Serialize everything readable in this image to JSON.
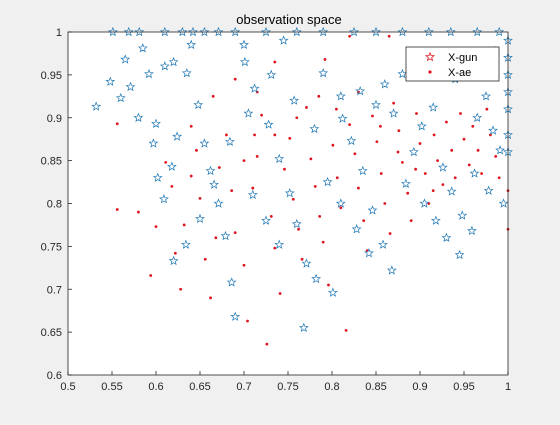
{
  "chart_data": {
    "type": "scatter",
    "title": "observation space",
    "xlabel": "",
    "ylabel": "",
    "xlim": [
      0.5,
      1
    ],
    "ylim": [
      0.6,
      1
    ],
    "xticks": [
      "0.5",
      "0.55",
      "0.6",
      "0.65",
      "0.7",
      "0.75",
      "0.8",
      "0.85",
      "0.9",
      "0.95",
      "1"
    ],
    "yticks": [
      "0.6",
      "0.65",
      "0.7",
      "0.75",
      "0.8",
      "0.85",
      "0.9",
      "0.95",
      "1"
    ],
    "grid": false,
    "legend_position": "top-right",
    "series": [
      {
        "name": "X-gun",
        "marker": "star",
        "color": "#1f77b4",
        "points": [
          [
            0.551,
            1.0
          ],
          [
            0.569,
            1.0
          ],
          [
            0.581,
            1.0
          ],
          [
            0.61,
            1.0
          ],
          [
            0.63,
            1.0
          ],
          [
            0.642,
            1.0
          ],
          [
            0.655,
            1.0
          ],
          [
            0.671,
            1.0
          ],
          [
            0.69,
            1.0
          ],
          [
            0.725,
            1.0
          ],
          [
            0.76,
            1.0
          ],
          [
            0.79,
            1.0
          ],
          [
            0.825,
            1.0
          ],
          [
            0.85,
            1.0
          ],
          [
            0.88,
            1.0
          ],
          [
            0.91,
            1.0
          ],
          [
            0.935,
            1.0
          ],
          [
            0.965,
            1.0
          ],
          [
            0.99,
            1.0
          ],
          [
            1.0,
            0.99
          ],
          [
            1.0,
            0.97
          ],
          [
            1.0,
            0.95
          ],
          [
            1.0,
            0.93
          ],
          [
            1.0,
            0.91
          ],
          [
            1.0,
            0.88
          ],
          [
            1.0,
            0.86
          ],
          [
            0.532,
            0.913
          ],
          [
            0.548,
            0.942
          ],
          [
            0.565,
            0.968
          ],
          [
            0.571,
            0.936
          ],
          [
            0.585,
            0.981
          ],
          [
            0.592,
            0.951
          ],
          [
            0.6,
            0.893
          ],
          [
            0.602,
            0.83
          ],
          [
            0.609,
            0.805
          ],
          [
            0.618,
            0.843
          ],
          [
            0.624,
            0.878
          ],
          [
            0.635,
            0.952
          ],
          [
            0.648,
            0.915
          ],
          [
            0.655,
            0.87
          ],
          [
            0.662,
            0.838
          ],
          [
            0.671,
            0.8
          ],
          [
            0.679,
            0.762
          ],
          [
            0.686,
            0.708
          ],
          [
            0.69,
            0.668
          ],
          [
            0.701,
            0.965
          ],
          [
            0.712,
            0.934
          ],
          [
            0.728,
            0.892
          ],
          [
            0.74,
            0.852
          ],
          [
            0.752,
            0.812
          ],
          [
            0.76,
            0.776
          ],
          [
            0.771,
            0.73
          ],
          [
            0.782,
            0.712
          ],
          [
            0.768,
            0.655
          ],
          [
            0.801,
            0.696
          ],
          [
            0.79,
            0.952
          ],
          [
            0.81,
            0.925
          ],
          [
            0.822,
            0.873
          ],
          [
            0.835,
            0.838
          ],
          [
            0.846,
            0.792
          ],
          [
            0.858,
            0.752
          ],
          [
            0.868,
            0.722
          ],
          [
            0.884,
            0.823
          ],
          [
            0.893,
            0.86
          ],
          [
            0.902,
            0.89
          ],
          [
            0.915,
            0.912
          ],
          [
            0.926,
            0.842
          ],
          [
            0.936,
            0.814
          ],
          [
            0.948,
            0.786
          ],
          [
            0.959,
            0.768
          ],
          [
            0.965,
            0.9
          ],
          [
            0.975,
            0.925
          ],
          [
            0.983,
            0.885
          ],
          [
            0.991,
            0.862
          ],
          [
            0.88,
            0.951
          ],
          [
            0.86,
            0.939
          ],
          [
            0.9,
            0.972
          ],
          [
            0.92,
            0.961
          ],
          [
            0.94,
            0.945
          ],
          [
            0.955,
            0.955
          ],
          [
            0.97,
            0.965
          ],
          [
            0.985,
            0.978
          ],
          [
            0.87,
            0.905
          ],
          [
            0.85,
            0.915
          ],
          [
            0.832,
            0.931
          ],
          [
            0.812,
            0.899
          ],
          [
            0.78,
            0.887
          ],
          [
            0.757,
            0.92
          ],
          [
            0.731,
            0.95
          ],
          [
            0.705,
            0.905
          ],
          [
            0.684,
            0.872
          ],
          [
            0.666,
            0.822
          ],
          [
            0.65,
            0.782
          ],
          [
            0.634,
            0.752
          ],
          [
            0.62,
            0.733
          ],
          [
            0.597,
            0.87
          ],
          [
            0.58,
            0.9
          ],
          [
            0.56,
            0.923
          ],
          [
            0.74,
            0.752
          ],
          [
            0.725,
            0.78
          ],
          [
            0.71,
            0.81
          ],
          [
            0.795,
            0.825
          ],
          [
            0.81,
            0.8
          ],
          [
            0.828,
            0.77
          ],
          [
            0.842,
            0.742
          ],
          [
            0.905,
            0.8
          ],
          [
            0.918,
            0.78
          ],
          [
            0.93,
            0.76
          ],
          [
            0.945,
            0.74
          ],
          [
            0.962,
            0.835
          ],
          [
            0.978,
            0.815
          ],
          [
            0.995,
            0.8
          ],
          [
            0.7,
            0.985
          ],
          [
            0.745,
            0.99
          ],
          [
            0.64,
            0.985
          ],
          [
            0.61,
            0.96
          ],
          [
            0.62,
            0.965
          ]
        ]
      },
      {
        "name": "X-ae",
        "marker": "dot",
        "color": "#e0141e",
        "points": [
          [
            0.556,
            0.893
          ],
          [
            0.556,
            0.793
          ],
          [
            0.58,
            0.79
          ],
          [
            0.594,
            0.716
          ],
          [
            0.6,
            0.773
          ],
          [
            0.611,
            0.848
          ],
          [
            0.618,
            0.82
          ],
          [
            0.622,
            0.742
          ],
          [
            0.628,
            0.7
          ],
          [
            0.632,
            0.775
          ],
          [
            0.64,
            0.832
          ],
          [
            0.646,
            0.862
          ],
          [
            0.65,
            0.806
          ],
          [
            0.656,
            0.735
          ],
          [
            0.662,
            0.69
          ],
          [
            0.668,
            0.76
          ],
          [
            0.672,
            0.842
          ],
          [
            0.68,
            0.88
          ],
          [
            0.686,
            0.815
          ],
          [
            0.69,
            0.766
          ],
          [
            0.7,
            0.728
          ],
          [
            0.704,
            0.663
          ],
          [
            0.71,
            0.818
          ],
          [
            0.715,
            0.855
          ],
          [
            0.72,
            0.903
          ],
          [
            0.726,
            0.636
          ],
          [
            0.731,
            0.785
          ],
          [
            0.735,
            0.748
          ],
          [
            0.741,
            0.695
          ],
          [
            0.746,
            0.84
          ],
          [
            0.752,
            0.876
          ],
          [
            0.756,
            0.805
          ],
          [
            0.762,
            0.77
          ],
          [
            0.766,
            0.735
          ],
          [
            0.771,
            0.912
          ],
          [
            0.776,
            0.852
          ],
          [
            0.781,
            0.82
          ],
          [
            0.786,
            0.785
          ],
          [
            0.79,
            0.755
          ],
          [
            0.796,
            0.705
          ],
          [
            0.801,
            0.868
          ],
          [
            0.806,
            0.83
          ],
          [
            0.81,
            0.795
          ],
          [
            0.816,
            0.652
          ],
          [
            0.82,
            0.892
          ],
          [
            0.826,
            0.858
          ],
          [
            0.83,
            0.818
          ],
          [
            0.836,
            0.78
          ],
          [
            0.84,
            0.745
          ],
          [
            0.846,
            0.902
          ],
          [
            0.851,
            0.872
          ],
          [
            0.856,
            0.835
          ],
          [
            0.86,
            0.8
          ],
          [
            0.866,
            0.765
          ],
          [
            0.87,
            0.917
          ],
          [
            0.876,
            0.885
          ],
          [
            0.88,
            0.848
          ],
          [
            0.886,
            0.812
          ],
          [
            0.89,
            0.78
          ],
          [
            0.896,
            0.905
          ],
          [
            0.9,
            0.87
          ],
          [
            0.906,
            0.835
          ],
          [
            0.91,
            0.8
          ],
          [
            0.916,
            0.88
          ],
          [
            0.92,
            0.85
          ],
          [
            0.926,
            0.822
          ],
          [
            0.93,
            0.895
          ],
          [
            0.936,
            0.862
          ],
          [
            0.94,
            0.83
          ],
          [
            0.946,
            0.905
          ],
          [
            0.95,
            0.875
          ],
          [
            0.956,
            0.845
          ],
          [
            0.96,
            0.89
          ],
          [
            0.966,
            0.862
          ],
          [
            0.97,
            0.835
          ],
          [
            0.976,
            0.91
          ],
          [
            0.98,
            0.88
          ],
          [
            0.986,
            0.855
          ],
          [
            0.99,
            0.83
          ],
          [
            1.0,
            0.815
          ],
          [
            1.0,
            0.77
          ],
          [
            0.64,
            0.89
          ],
          [
            0.665,
            0.925
          ],
          [
            0.69,
            0.945
          ],
          [
            0.715,
            0.93
          ],
          [
            0.735,
            0.88
          ],
          [
            0.76,
            0.9
          ],
          [
            0.785,
            0.925
          ],
          [
            0.805,
            0.91
          ],
          [
            0.83,
            0.93
          ],
          [
            0.855,
            0.89
          ],
          [
            0.875,
            0.86
          ],
          [
            0.895,
            0.84
          ],
          [
            0.915,
            0.815
          ],
          [
            0.735,
            0.965
          ],
          [
            0.792,
            0.968
          ],
          [
            0.82,
            0.995
          ],
          [
            0.865,
            0.995
          ],
          [
            0.712,
            0.88
          ],
          [
            0.7,
            0.85
          ]
        ]
      }
    ]
  }
}
